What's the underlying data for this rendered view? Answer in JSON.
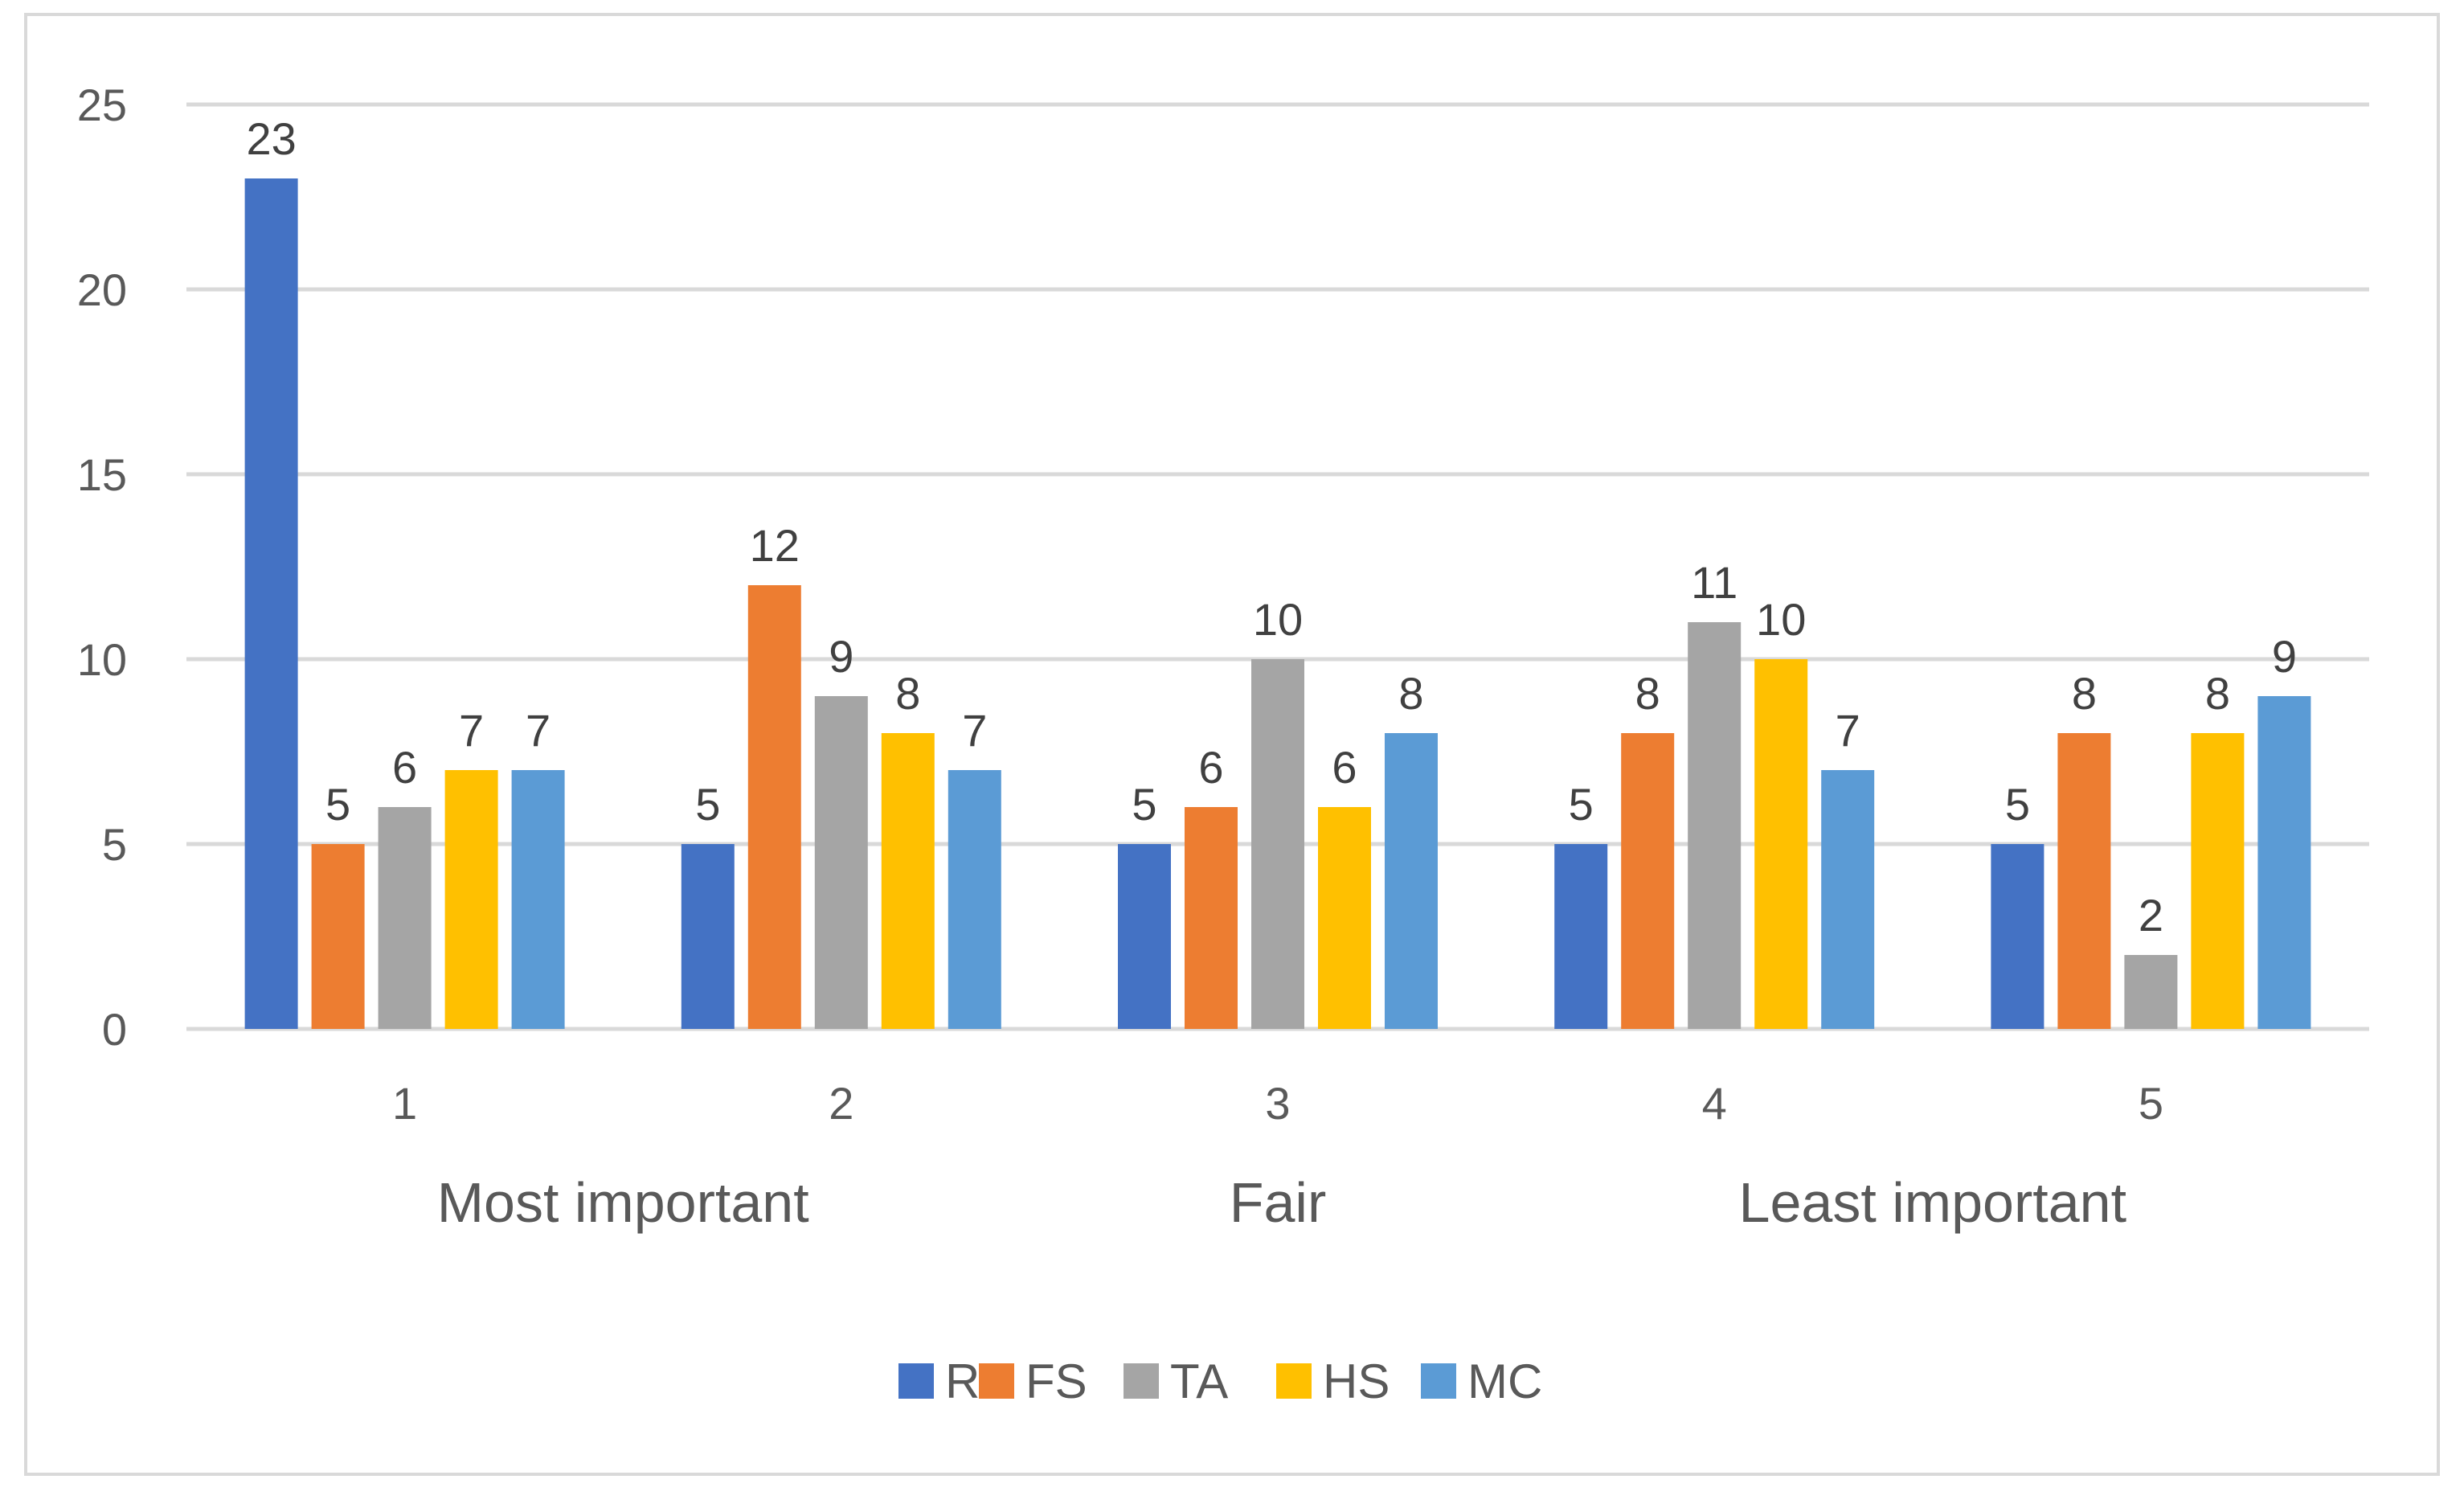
{
  "chart_data": {
    "type": "bar",
    "title": "",
    "xlabel": "",
    "ylabel": "",
    "ylim": [
      0,
      25
    ],
    "yticks": [
      0,
      5,
      10,
      15,
      20,
      25
    ],
    "grid": true,
    "categories": [
      "1",
      "2",
      "3",
      "4",
      "5"
    ],
    "group_labels": [
      "Most important",
      "Fair",
      "Least important"
    ],
    "legend_position": "bottom",
    "series": [
      {
        "name": "R",
        "color": "#4472C4",
        "values": [
          23,
          5,
          5,
          5,
          5
        ]
      },
      {
        "name": "FS",
        "color": "#ED7D31",
        "values": [
          5,
          12,
          6,
          8,
          8
        ]
      },
      {
        "name": "TA",
        "color": "#A5A5A5",
        "values": [
          6,
          9,
          10,
          11,
          2
        ]
      },
      {
        "name": "HS",
        "color": "#FFC000",
        "values": [
          7,
          8,
          6,
          10,
          8
        ]
      },
      {
        "name": "MC",
        "color": "#5B9BD5",
        "values": [
          7,
          7,
          8,
          7,
          9
        ]
      }
    ]
  }
}
